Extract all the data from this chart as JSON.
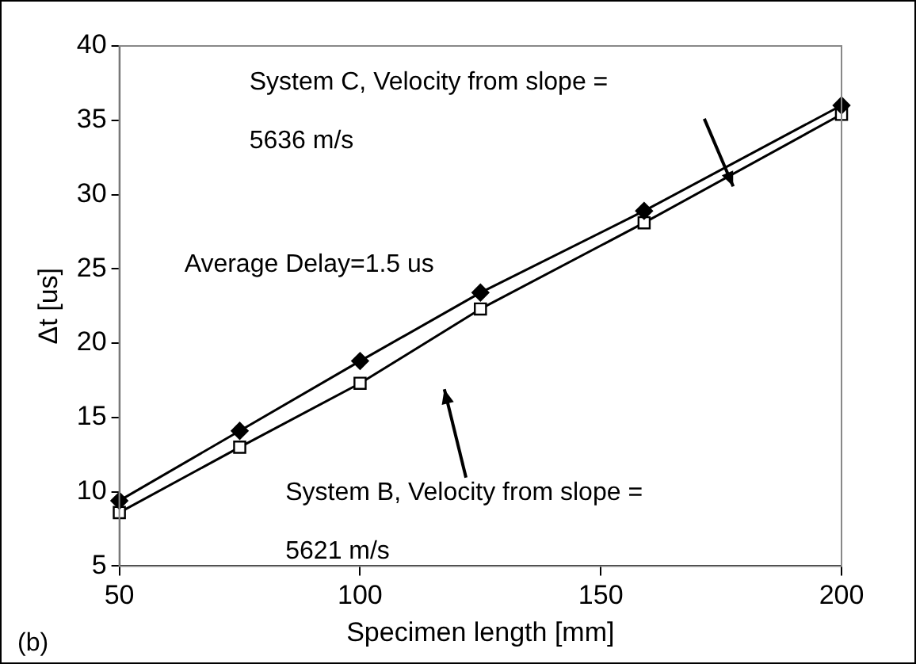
{
  "chart_data": {
    "type": "line",
    "xlabel": "Specimen length [mm]",
    "ylabel": "Δt [us]",
    "x": [
      50,
      75,
      100,
      125,
      159,
      200
    ],
    "series": [
      {
        "color": "#000000",
        "marker": "diamond",
        "values": [
          9.4,
          14.1,
          18.8,
          23.4,
          28.9,
          36.0
        ]
      },
      {
        "color": "#000000",
        "marker": "square",
        "values": [
          8.6,
          13.0,
          17.3,
          22.3,
          28.1,
          35.4
        ]
      }
    ],
    "xlim": [
      50,
      200
    ],
    "xticks": [
      50,
      100,
      150,
      200
    ],
    "ylim": [
      5,
      40
    ],
    "yticks": [
      5,
      10,
      15,
      20,
      25,
      30,
      35,
      40
    ],
    "grid": false,
    "legend": false,
    "annotations": [
      "System C, Velocity from slope =\n5636 m/s",
      "Average Delay=1.5 us",
      "System B, Velocity from slope =\n5621 m/s",
      "(b)"
    ]
  }
}
